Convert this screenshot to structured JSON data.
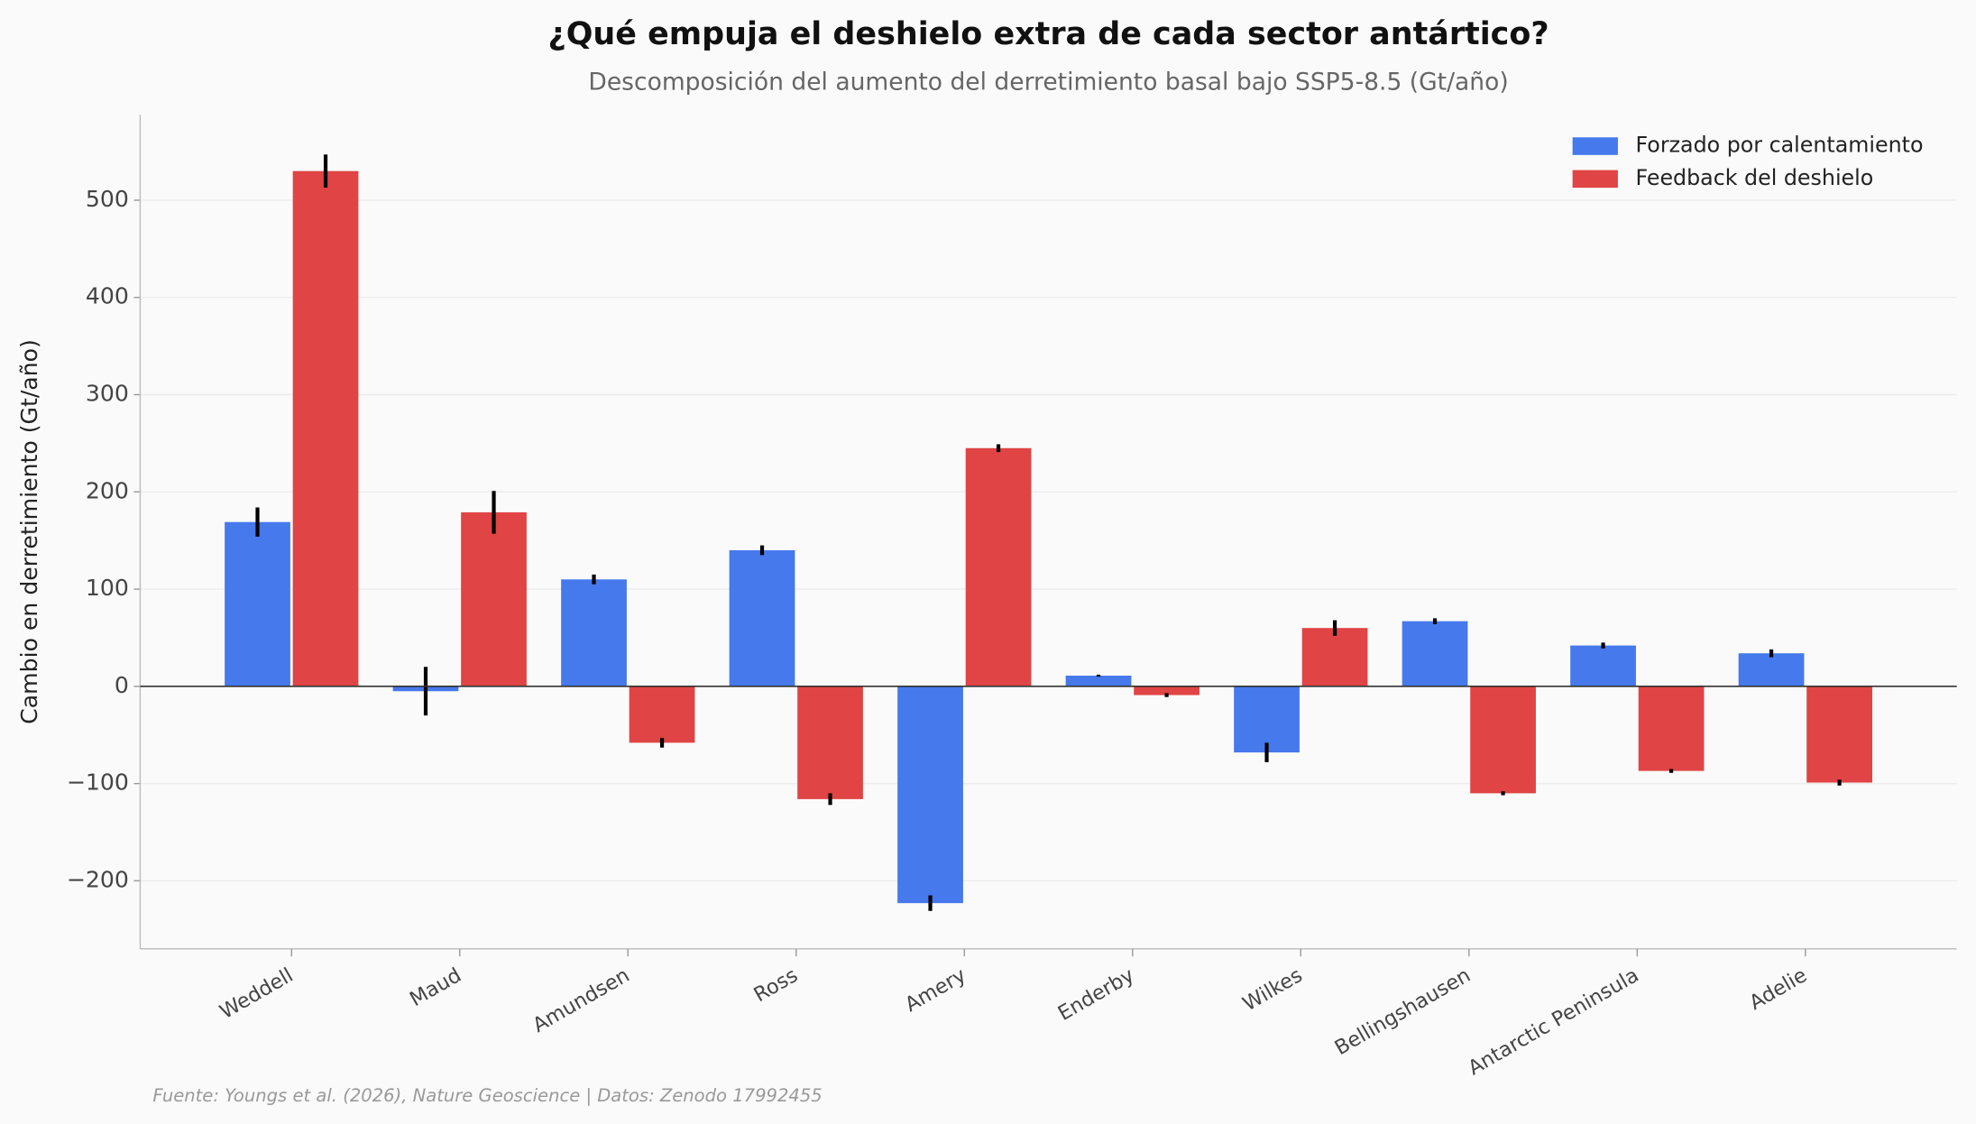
{
  "chart_data": {
    "type": "bar",
    "title": "¿Qué empuja el deshielo extra de cada sector antártico?",
    "subtitle": "Descomposición del aumento del derretimiento basal bajo SSP5-8.5 (Gt/año)",
    "ylabel": "Cambio en derretimiento (Gt/año)",
    "source": "Fuente: Youngs et al. (2026), Nature Geoscience | Datos: Zenodo 17992455",
    "categories": [
      "Weddell",
      "Maud",
      "Amundsen",
      "Ross",
      "Amery",
      "Enderby",
      "Wilkes",
      "Bellingshausen",
      "Antarctic Peninsula",
      "Adelie"
    ],
    "series": [
      {
        "name": "Forzado por calentamiento",
        "color": "#4579ec",
        "values": [
          169,
          -5,
          110,
          140,
          -223,
          11,
          -68,
          67,
          42,
          34
        ],
        "errors": [
          15,
          25,
          5,
          5,
          8,
          1,
          10,
          3,
          3,
          4
        ]
      },
      {
        "name": "Feedback del deshielo",
        "color": "#e04444",
        "values": [
          530,
          179,
          -58,
          -116,
          245,
          -9,
          60,
          -110,
          -87,
          -99
        ],
        "errors": [
          17,
          22,
          5,
          6,
          4,
          2,
          8,
          2,
          2,
          3
        ]
      }
    ],
    "ylim": [
      -270,
      588
    ],
    "yticks": [
      {
        "value": -200,
        "label": "−200"
      },
      {
        "value": -100,
        "label": "−100"
      },
      0,
      100,
      200,
      300,
      400,
      500
    ],
    "grid": true,
    "legend": "upper right"
  }
}
